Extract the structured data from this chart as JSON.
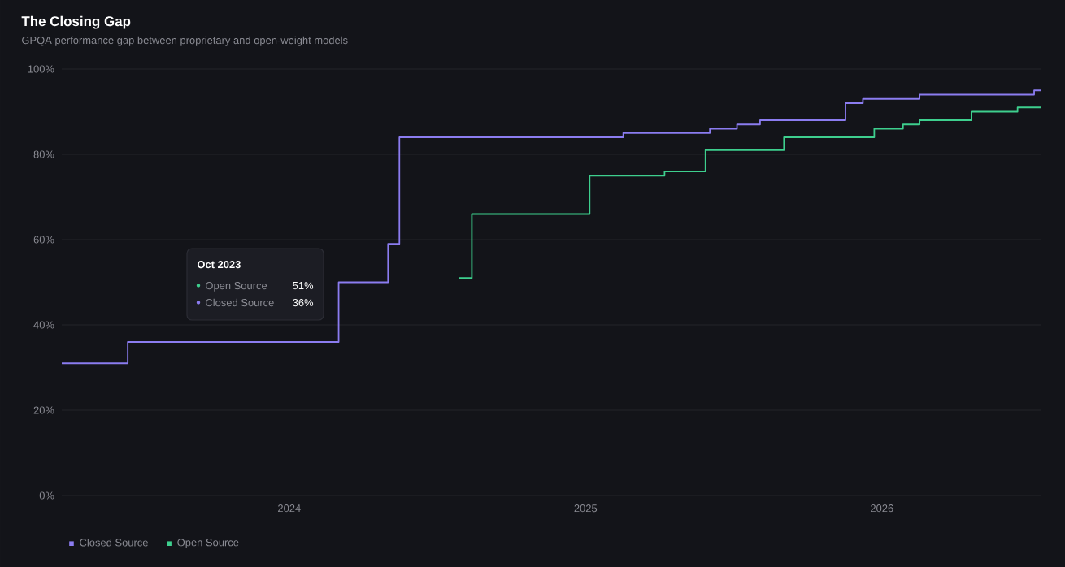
{
  "chart_data": {
    "type": "step",
    "title": "The Closing Gap",
    "subtitle": "GPQA performance gap between proprietary and open-weight models",
    "series": [
      {
        "name": "Closed Source",
        "color": "#8b7cf0",
        "x": [
          "2023-03-25",
          "2023-06-15",
          "2024-03-01",
          "2024-05-01",
          "2024-05-15",
          "2025-02-17",
          "2025-06-02",
          "2025-07-05",
          "2025-08-03",
          "2025-11-17",
          "2025-12-08",
          "2026-02-17",
          "2026-07-06",
          "2026-07-14"
        ],
        "values": [
          31,
          36,
          50,
          59,
          84,
          85,
          86,
          87,
          88,
          92,
          93,
          94,
          95,
          95
        ]
      },
      {
        "name": "Open Source",
        "color": "#3ecf8e",
        "x": [
          "2024-07-27",
          "2024-08-13",
          "2025-01-06",
          "2025-04-07",
          "2025-05-27",
          "2025-09-02",
          "2025-12-22",
          "2026-01-27",
          "2026-02-17",
          "2026-04-20",
          "2026-06-16",
          "2026-07-14"
        ],
        "values": [
          51,
          66,
          75,
          76,
          81,
          84,
          86,
          87,
          88,
          90,
          91,
          91
        ]
      }
    ],
    "xlim": [
      "2023-03-25",
      "2026-07-14"
    ],
    "xticks": [
      {
        "value": "2024-01-01",
        "label": "2024"
      },
      {
        "value": "2025-01-01",
        "label": "2025"
      },
      {
        "value": "2026-01-01",
        "label": "2026"
      }
    ],
    "ylim": [
      0,
      100
    ],
    "yticks": [
      {
        "value": 0,
        "label": "0%"
      },
      {
        "value": 20,
        "label": "20%"
      },
      {
        "value": 40,
        "label": "40%"
      },
      {
        "value": 60,
        "label": "60%"
      },
      {
        "value": 80,
        "label": "80%"
      },
      {
        "value": 100,
        "label": "100%"
      }
    ],
    "grid": "y",
    "legend": "bottom left",
    "annotations": [
      "Oct 2023",
      "Open Source",
      "51%",
      "Closed Source",
      "36%"
    ]
  }
}
